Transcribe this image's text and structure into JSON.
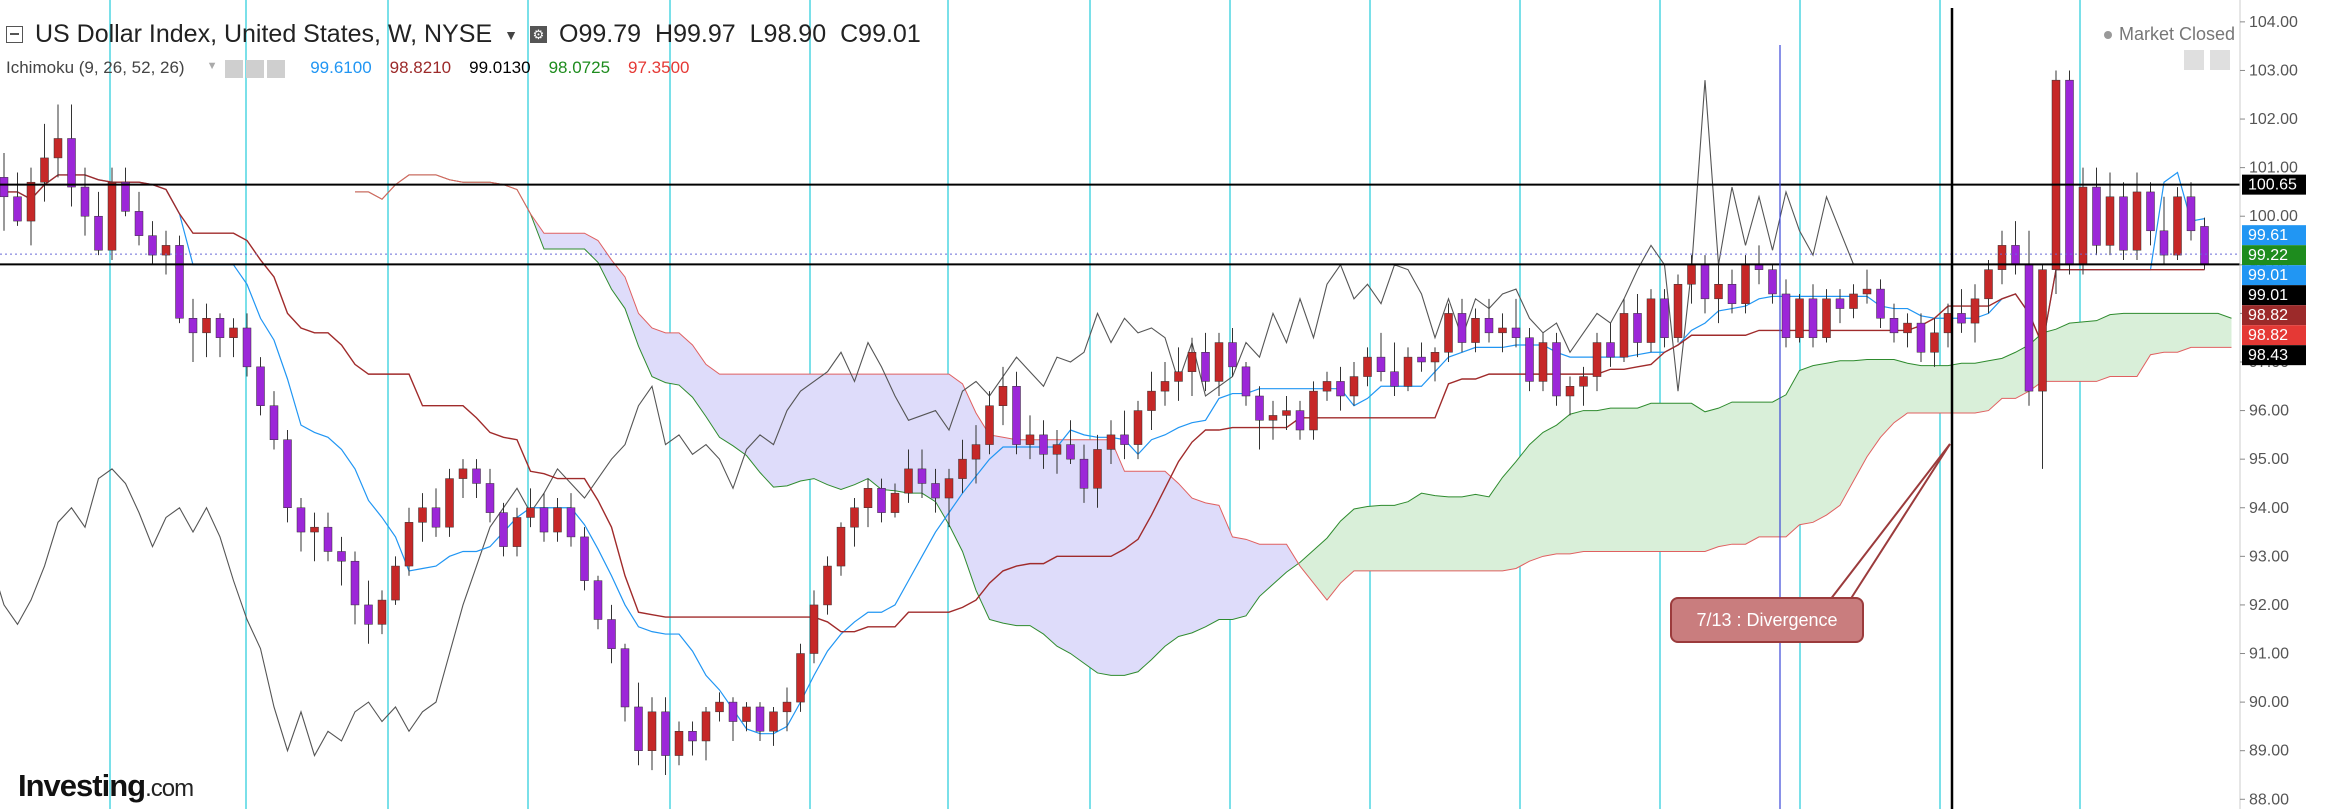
{
  "header": {
    "symbol": "US Dollar Index, United States, W, NYSE",
    "ohlc": {
      "open": "O99.79",
      "high": "H99.97",
      "low": "L98.90",
      "close": "C99.01"
    }
  },
  "indicator": {
    "name": "Ichimoku (9, 26, 52, 26)",
    "values": [
      {
        "text": "99.6100",
        "color": "#2196f3"
      },
      {
        "text": "98.8210",
        "color": "#9c2a2a"
      },
      {
        "text": "99.0130",
        "color": "#000000"
      },
      {
        "text": "98.0725",
        "color": "#1e8c1e"
      },
      {
        "text": "97.3500",
        "color": "#e53935"
      }
    ]
  },
  "status": {
    "market": "Market Closed"
  },
  "watermark": {
    "brand": "Investing",
    "suffix": ".com"
  },
  "annotation": {
    "label": "7/13 : Divergence"
  },
  "colors": {
    "candle_bull": "#c62828",
    "candle_bear": "#9c27d8",
    "tenkan": "#2196f3",
    "kijun": "#a02b2b",
    "lagging": "#555555",
    "span_a": "#2e8b2e",
    "span_b": "#e06060",
    "cloud_bull": "#d9efd9",
    "cloud_bear": "#dedcfa",
    "vertical_grid": "#33d0dd"
  },
  "chart_data": {
    "type": "candlestick",
    "ylim": [
      87.8,
      104.45
    ],
    "yticks": [
      "88.00",
      "89.00",
      "90.00",
      "91.00",
      "92.00",
      "93.00",
      "94.00",
      "95.00",
      "96.00",
      "97.00",
      "98.00",
      "99.00",
      "100.00",
      "101.00",
      "102.00",
      "103.00",
      "104.00"
    ],
    "candles": [
      [
        100.8,
        101.3,
        99.7,
        100.4
      ],
      [
        100.4,
        100.9,
        99.8,
        99.9
      ],
      [
        99.9,
        101.0,
        99.4,
        100.7
      ],
      [
        100.7,
        101.9,
        100.3,
        101.2
      ],
      [
        101.2,
        102.3,
        100.8,
        101.6
      ],
      [
        101.6,
        102.3,
        100.2,
        100.6
      ],
      [
        100.6,
        101.0,
        99.6,
        100.0
      ],
      [
        100.0,
        100.5,
        99.2,
        99.3
      ],
      [
        99.3,
        101.0,
        99.1,
        100.7
      ],
      [
        100.7,
        101.0,
        100.0,
        100.1
      ],
      [
        100.1,
        100.5,
        99.4,
        99.6
      ],
      [
        99.6,
        99.9,
        99.0,
        99.2
      ],
      [
        99.2,
        99.7,
        98.8,
        99.4
      ],
      [
        99.4,
        99.6,
        97.8,
        97.9
      ],
      [
        97.9,
        98.3,
        97.0,
        97.6
      ],
      [
        97.6,
        98.2,
        97.1,
        97.9
      ],
      [
        97.9,
        98.0,
        97.1,
        97.5
      ],
      [
        97.5,
        97.9,
        97.1,
        97.7
      ],
      [
        97.7,
        98.0,
        96.7,
        96.9
      ],
      [
        96.9,
        97.1,
        95.9,
        96.1
      ],
      [
        96.1,
        96.4,
        95.2,
        95.4
      ],
      [
        95.4,
        95.6,
        93.7,
        94.0
      ],
      [
        94.0,
        94.2,
        93.1,
        93.5
      ],
      [
        93.5,
        93.9,
        92.9,
        93.6
      ],
      [
        93.6,
        93.9,
        92.9,
        93.1
      ],
      [
        93.1,
        93.4,
        92.4,
        92.9
      ],
      [
        92.9,
        93.1,
        91.6,
        92.0
      ],
      [
        92.0,
        92.5,
        91.2,
        91.6
      ],
      [
        91.6,
        92.3,
        91.4,
        92.1
      ],
      [
        92.1,
        93.0,
        92.0,
        92.8
      ],
      [
        92.8,
        94.0,
        92.6,
        93.7
      ],
      [
        93.7,
        94.3,
        93.3,
        94.0
      ],
      [
        94.0,
        94.4,
        93.4,
        93.6
      ],
      [
        93.6,
        94.8,
        93.4,
        94.6
      ],
      [
        94.6,
        95.0,
        94.2,
        94.8
      ],
      [
        94.8,
        95.0,
        94.2,
        94.5
      ],
      [
        94.5,
        94.8,
        93.7,
        93.9
      ],
      [
        93.9,
        94.1,
        93.0,
        93.2
      ],
      [
        93.2,
        94.0,
        93.0,
        93.8
      ],
      [
        93.8,
        94.4,
        93.6,
        94.0
      ],
      [
        94.0,
        94.3,
        93.3,
        93.5
      ],
      [
        93.5,
        94.2,
        93.3,
        94.0
      ],
      [
        94.0,
        94.3,
        93.2,
        93.4
      ],
      [
        93.4,
        93.6,
        92.3,
        92.5
      ],
      [
        92.5,
        92.6,
        91.5,
        91.7
      ],
      [
        91.7,
        92.0,
        90.8,
        91.1
      ],
      [
        91.1,
        91.2,
        89.6,
        89.9
      ],
      [
        89.9,
        90.4,
        88.7,
        89.0
      ],
      [
        89.0,
        90.1,
        88.6,
        89.8
      ],
      [
        89.8,
        90.1,
        88.5,
        88.9
      ],
      [
        88.9,
        89.6,
        88.7,
        89.4
      ],
      [
        89.4,
        89.6,
        88.9,
        89.2
      ],
      [
        89.2,
        89.9,
        88.8,
        89.8
      ],
      [
        89.8,
        90.2,
        89.6,
        90.0
      ],
      [
        90.0,
        90.1,
        89.2,
        89.6
      ],
      [
        89.6,
        90.0,
        89.4,
        89.9
      ],
      [
        89.9,
        90.0,
        89.2,
        89.4
      ],
      [
        89.4,
        89.9,
        89.1,
        89.8
      ],
      [
        89.8,
        90.3,
        89.4,
        90.0
      ],
      [
        90.0,
        91.2,
        89.8,
        91.0
      ],
      [
        91.0,
        92.3,
        90.8,
        92.0
      ],
      [
        92.0,
        93.0,
        91.8,
        92.8
      ],
      [
        92.8,
        93.7,
        92.6,
        93.6
      ],
      [
        93.6,
        94.2,
        93.2,
        94.0
      ],
      [
        94.0,
        94.6,
        93.6,
        94.4
      ],
      [
        94.4,
        94.6,
        93.7,
        93.9
      ],
      [
        93.9,
        94.5,
        93.8,
        94.3
      ],
      [
        94.3,
        95.2,
        94.1,
        94.8
      ],
      [
        94.8,
        95.2,
        94.2,
        94.5
      ],
      [
        94.5,
        94.8,
        93.9,
        94.2
      ],
      [
        94.2,
        94.8,
        93.6,
        94.6
      ],
      [
        94.6,
        95.4,
        94.3,
        95.0
      ],
      [
        95.0,
        95.7,
        94.5,
        95.3
      ],
      [
        95.3,
        96.4,
        95.1,
        96.1
      ],
      [
        96.1,
        96.9,
        95.7,
        96.5
      ],
      [
        96.5,
        96.8,
        95.1,
        95.3
      ],
      [
        95.3,
        95.9,
        95.0,
        95.5
      ],
      [
        95.5,
        95.8,
        94.8,
        95.1
      ],
      [
        95.1,
        95.6,
        94.7,
        95.3
      ],
      [
        95.3,
        95.8,
        94.9,
        95.0
      ],
      [
        95.0,
        95.3,
        94.1,
        94.4
      ],
      [
        94.4,
        95.5,
        94.0,
        95.2
      ],
      [
        95.2,
        95.8,
        94.9,
        95.5
      ],
      [
        95.5,
        96.0,
        95.0,
        95.3
      ],
      [
        95.3,
        96.2,
        95.0,
        96.0
      ],
      [
        96.0,
        96.8,
        95.6,
        96.4
      ],
      [
        96.4,
        97.0,
        96.1,
        96.6
      ],
      [
        96.6,
        97.3,
        96.2,
        96.8
      ],
      [
        96.8,
        97.5,
        96.3,
        97.2
      ],
      [
        97.2,
        97.6,
        96.4,
        96.6
      ],
      [
        96.6,
        97.6,
        96.3,
        97.4
      ],
      [
        97.4,
        97.7,
        96.7,
        96.9
      ],
      [
        96.9,
        97.0,
        96.1,
        96.3
      ],
      [
        96.3,
        96.5,
        95.2,
        95.8
      ],
      [
        95.8,
        96.2,
        95.4,
        95.9
      ],
      [
        95.9,
        96.3,
        95.6,
        96.0
      ],
      [
        96.0,
        96.2,
        95.4,
        95.6
      ],
      [
        95.6,
        96.6,
        95.4,
        96.4
      ],
      [
        96.4,
        96.8,
        96.2,
        96.6
      ],
      [
        96.6,
        96.9,
        96.0,
        96.3
      ],
      [
        96.3,
        97.0,
        96.1,
        96.7
      ],
      [
        96.7,
        97.3,
        96.5,
        97.1
      ],
      [
        97.1,
        97.6,
        96.6,
        96.8
      ],
      [
        96.8,
        97.4,
        96.3,
        96.5
      ],
      [
        96.5,
        97.3,
        96.4,
        97.1
      ],
      [
        97.1,
        97.4,
        96.8,
        97.0
      ],
      [
        97.0,
        97.3,
        96.6,
        97.2
      ],
      [
        97.2,
        98.2,
        97.0,
        98.0
      ],
      [
        98.0,
        98.3,
        97.2,
        97.4
      ],
      [
        97.4,
        98.1,
        97.2,
        97.9
      ],
      [
        97.9,
        98.3,
        97.4,
        97.6
      ],
      [
        97.6,
        98.0,
        97.2,
        97.7
      ],
      [
        97.7,
        98.3,
        97.3,
        97.5
      ],
      [
        97.5,
        97.7,
        96.4,
        96.6
      ],
      [
        96.6,
        97.6,
        96.4,
        97.4
      ],
      [
        97.4,
        97.6,
        96.1,
        96.3
      ],
      [
        96.3,
        96.7,
        95.9,
        96.5
      ],
      [
        96.5,
        96.9,
        96.1,
        96.7
      ],
      [
        96.7,
        97.6,
        96.4,
        97.4
      ],
      [
        97.4,
        97.8,
        96.9,
        97.1
      ],
      [
        97.1,
        98.3,
        97.0,
        98.0
      ],
      [
        98.0,
        98.4,
        97.1,
        97.4
      ],
      [
        97.4,
        98.5,
        97.2,
        98.3
      ],
      [
        98.3,
        98.5,
        97.3,
        97.5
      ],
      [
        97.5,
        98.8,
        97.4,
        98.6
      ],
      [
        98.6,
        99.2,
        98.2,
        99.0
      ],
      [
        99.0,
        99.2,
        98.0,
        98.3
      ],
      [
        98.3,
        99.0,
        97.8,
        98.6
      ],
      [
        98.6,
        98.9,
        98.0,
        98.2
      ],
      [
        98.2,
        99.2,
        98.0,
        99.0
      ],
      [
        99.0,
        99.4,
        98.6,
        98.9
      ],
      [
        98.9,
        99.0,
        98.2,
        98.4
      ],
      [
        98.4,
        98.7,
        97.3,
        97.5
      ],
      [
        97.5,
        98.4,
        97.4,
        98.3
      ],
      [
        98.3,
        98.6,
        97.3,
        97.5
      ],
      [
        97.5,
        98.5,
        97.4,
        98.3
      ],
      [
        98.3,
        98.5,
        97.8,
        98.1
      ],
      [
        98.1,
        98.6,
        97.9,
        98.4
      ],
      [
        98.4,
        98.9,
        98.2,
        98.5
      ],
      [
        98.5,
        98.7,
        97.7,
        97.9
      ],
      [
        97.9,
        98.2,
        97.4,
        97.6
      ],
      [
        97.6,
        98.0,
        97.3,
        97.8
      ],
      [
        97.8,
        98.0,
        97.0,
        97.2
      ],
      [
        97.2,
        97.9,
        96.9,
        97.6
      ],
      [
        97.6,
        98.2,
        97.3,
        98.0
      ],
      [
        98.0,
        98.5,
        97.6,
        97.8
      ],
      [
        97.8,
        98.6,
        97.4,
        98.3
      ],
      [
        98.3,
        99.1,
        98.0,
        98.9
      ],
      [
        98.9,
        99.7,
        98.6,
        99.4
      ],
      [
        99.4,
        99.9,
        98.8,
        99.0
      ],
      [
        99.0,
        99.7,
        96.1,
        96.4
      ],
      [
        96.4,
        99.0,
        94.8,
        98.9
      ],
      [
        98.9,
        103.0,
        98.4,
        102.8
      ],
      [
        102.8,
        103.0,
        98.8,
        99.0
      ],
      [
        99.0,
        101.0,
        98.8,
        100.6
      ],
      [
        100.6,
        101.0,
        99.2,
        99.4
      ],
      [
        99.4,
        100.9,
        99.2,
        100.4
      ],
      [
        100.4,
        100.7,
        99.1,
        99.3
      ],
      [
        99.3,
        100.9,
        99.1,
        100.5
      ],
      [
        100.5,
        100.7,
        99.4,
        99.7
      ],
      [
        99.7,
        100.4,
        99.0,
        99.2
      ],
      [
        99.2,
        100.6,
        99.1,
        100.4
      ],
      [
        100.4,
        100.7,
        99.5,
        99.7
      ],
      [
        99.79,
        99.97,
        98.9,
        99.01
      ]
    ],
    "horizontal_lines": [
      {
        "value": 100.65,
        "label": "100.65",
        "bg": "#000000",
        "fg": "#ffffff"
      },
      {
        "value": 99.01,
        "label": "",
        "bg": "",
        "fg": ""
      }
    ],
    "price_tags": [
      {
        "value": 100.65,
        "label": "100.65",
        "bg": "#000000",
        "fg": "#ffffff"
      },
      {
        "value": 99.61,
        "label": "99.61",
        "bg": "#2196f3",
        "fg": "#ffffff"
      },
      {
        "value": 99.22,
        "label": "99.22",
        "bg": "#1e8c1e",
        "fg": "#ffffff"
      },
      {
        "value": 99.01,
        "label": "99.01",
        "bg": "#2196f3",
        "fg": "#ffffff"
      },
      {
        "value": 99.01,
        "label": "99.01",
        "bg": "#000000",
        "fg": "#ffffff"
      },
      {
        "value": 98.82,
        "label": "98.82",
        "bg": "#9c2a2a",
        "fg": "#ffffff"
      },
      {
        "value": 98.82,
        "label": "98.82",
        "bg": "#e53935",
        "fg": "#ffffff"
      },
      {
        "value": 98.43,
        "label": "98.43",
        "bg": "#000000",
        "fg": "#ffffff"
      }
    ]
  }
}
